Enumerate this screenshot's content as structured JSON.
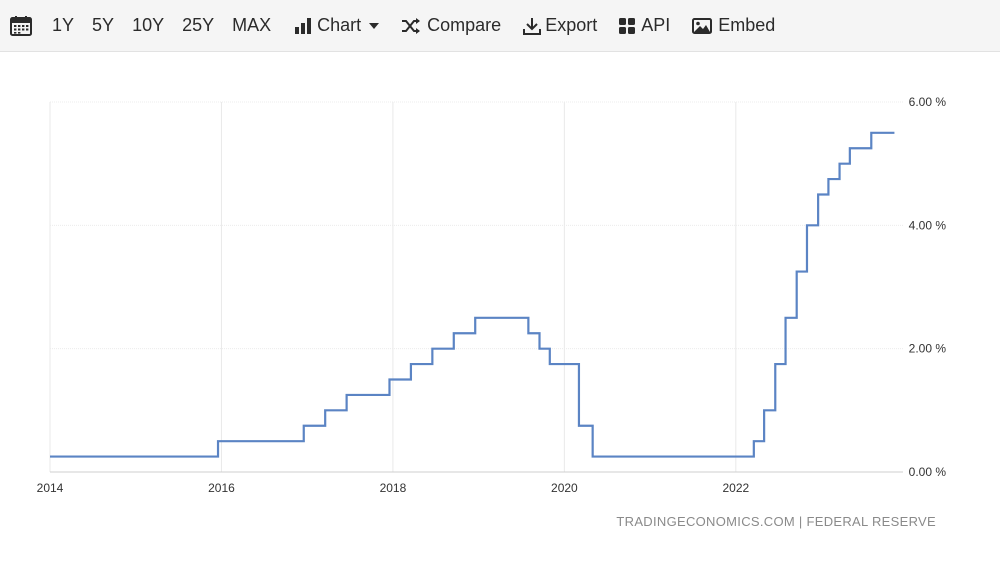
{
  "toolbar": {
    "calendar_icon": "calendar-icon",
    "ranges": [
      "1Y",
      "5Y",
      "10Y",
      "25Y",
      "MAX"
    ],
    "chart_label": "Chart",
    "compare_label": "Compare",
    "export_label": "Export",
    "api_label": "API",
    "embed_label": "Embed"
  },
  "source": "TRADINGECONOMICS.COM | FEDERAL RESERVE",
  "chart_data": {
    "type": "line",
    "step": true,
    "color": "#5b84c4",
    "grid": true,
    "y_axis_position": "right",
    "xlim": [
      2014.0,
      2023.95
    ],
    "ylim": [
      0,
      6
    ],
    "x_ticks": [
      2014,
      2016,
      2018,
      2020,
      2022
    ],
    "x_tick_labels": [
      "2014",
      "2016",
      "2018",
      "2020",
      "2022"
    ],
    "y_ticks": [
      0,
      2,
      4,
      6
    ],
    "y_tick_labels": [
      "0.00 %",
      "2.00 %",
      "4.00 %",
      "6.00 %"
    ],
    "series": [
      {
        "x": [
          2014.0,
          2015.96,
          2016.96,
          2017.21,
          2017.46,
          2017.96,
          2018.21,
          2018.46,
          2018.71,
          2018.96,
          2019.58,
          2019.71,
          2019.83,
          2020.17,
          2020.33,
          2022.21,
          2022.33,
          2022.46,
          2022.58,
          2022.71,
          2022.83,
          2022.96,
          2023.08,
          2023.21,
          2023.33,
          2023.58,
          2023.85
        ],
        "y": [
          0.25,
          0.5,
          0.75,
          1.0,
          1.25,
          1.5,
          1.75,
          2.0,
          2.25,
          2.5,
          2.25,
          2.0,
          1.75,
          0.75,
          0.25,
          0.5,
          1.0,
          1.75,
          2.5,
          3.25,
          4.0,
          4.5,
          4.75,
          5.0,
          5.25,
          5.5,
          5.5
        ]
      }
    ]
  }
}
